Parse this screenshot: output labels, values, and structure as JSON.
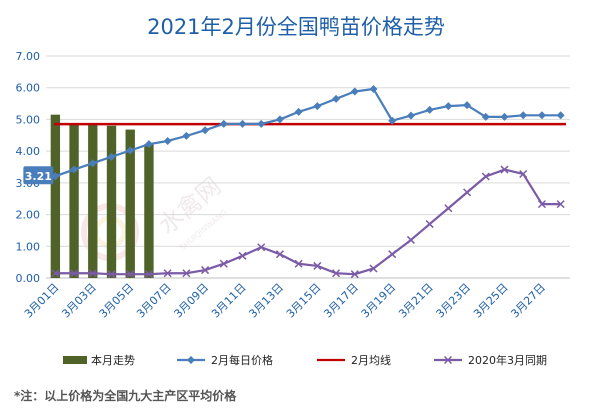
{
  "chart_data": {
    "type": "line",
    "title": "2021年2月份全国鸭苗价格走势",
    "ylim": [
      0,
      7
    ],
    "yticks": [
      "0.00",
      "1.00",
      "2.00",
      "3.00",
      "4.00",
      "5.00",
      "6.00",
      "7.00"
    ],
    "categories": [
      "3月01日",
      "3月02日",
      "3月03日",
      "3月04日",
      "3月05日",
      "3月06日",
      "3月07日",
      "3月08日",
      "3月09日",
      "3月10日",
      "3月11日",
      "3月12日",
      "3月13日",
      "3月14日",
      "3月15日",
      "3月16日",
      "3月17日",
      "3月18日",
      "3月19日",
      "3月20日",
      "3月21日",
      "3月22日",
      "3月23日",
      "3月24日",
      "3月25日",
      "3月26日",
      "3月27日",
      "3月28日"
    ],
    "xtick_labels": [
      "3月01日",
      "3月03日",
      "3月05日",
      "3月07日",
      "3月09日",
      "3月11日",
      "3月13日",
      "3月15日",
      "3月17日",
      "3月19日",
      "3月21日",
      "3月23日",
      "3月25日",
      "3月27日"
    ],
    "bar_series": {
      "name": "本月走势",
      "color": "#4f6228",
      "values": [
        5.15,
        4.85,
        4.85,
        4.8,
        4.68,
        4.22
      ]
    },
    "series": [
      {
        "name": "2月每日价格",
        "color": "#4a7ebb",
        "marker": "diamond",
        "values": [
          3.21,
          3.42,
          3.62,
          3.82,
          4.02,
          4.22,
          4.32,
          4.48,
          4.66,
          4.86,
          4.86,
          4.86,
          5.0,
          5.24,
          5.42,
          5.65,
          5.88,
          5.96,
          4.96,
          5.12,
          5.3,
          5.42,
          5.45,
          5.08,
          5.08,
          5.13,
          5.13,
          5.13
        ]
      },
      {
        "name": "2020年3月同期",
        "color": "#7b5aa6",
        "marker": "x",
        "values": [
          0.15,
          0.15,
          0.15,
          0.12,
          0.12,
          0.12,
          0.15,
          0.15,
          0.25,
          0.45,
          0.7,
          0.97,
          0.75,
          0.45,
          0.38,
          0.15,
          0.12,
          0.3,
          0.75,
          1.2,
          1.7,
          2.2,
          2.7,
          3.2,
          3.42,
          3.28,
          2.33,
          2.33
        ]
      }
    ],
    "reference_line": {
      "name": "2月均线",
      "color": "#c00000",
      "value": 4.85
    },
    "data_label": {
      "index": 0,
      "text": "3.21"
    },
    "legend_position": "bottom",
    "grid": "horizontal"
  },
  "footnote": "*注：以上价格为全国九大主产区平均价格",
  "watermark": {
    "cn": "水禽网",
    "en": "SHUIQINWANG"
  }
}
